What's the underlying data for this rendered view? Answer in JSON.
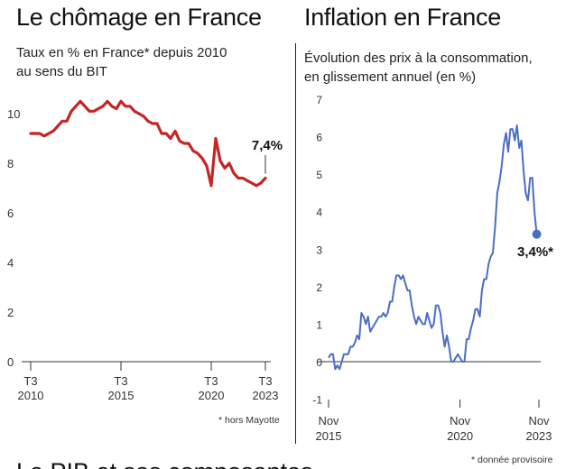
{
  "left": {
    "title": "Le chômage en France",
    "subtitle_line1": "Taux en % en France* depuis 2010",
    "subtitle_line2": "au sens du BIT",
    "footnote": "* hors Mayotte"
  },
  "right": {
    "title": "Inflation en France",
    "subtitle_line1": "Évolution des prix à la consommation,",
    "subtitle_line2": "en glissement annuel (en %)",
    "footnote": "* donnée provisoire"
  },
  "next_section_title": "Le PIB et ses composantes",
  "colors": {
    "unemployment_line": "#c42626",
    "inflation_line": "#4a6ec4",
    "axis": "#333333",
    "zero_line": "#333333"
  },
  "chart_data": [
    {
      "type": "line",
      "x_unit": "quarter index from 2010 T3",
      "ylim": [
        0,
        10
      ],
      "yticks": [
        0,
        2,
        4,
        6,
        8,
        10
      ],
      "xticks": [
        {
          "x": 0,
          "line1": "T3",
          "line2": "2010"
        },
        {
          "x": 20,
          "line1": "T3",
          "line2": "2015"
        },
        {
          "x": 40,
          "line1": "T3",
          "line2": "2020"
        },
        {
          "x": 52,
          "line1": "T3",
          "line2": "2023"
        }
      ],
      "annotation": "7,4%",
      "grid": false,
      "values": [
        9.2,
        9.2,
        9.2,
        9.1,
        9.2,
        9.3,
        9.5,
        9.7,
        9.7,
        10.1,
        10.3,
        10.5,
        10.3,
        10.1,
        10.1,
        10.2,
        10.3,
        10.5,
        10.3,
        10.2,
        10.5,
        10.3,
        10.3,
        10.1,
        10.0,
        9.9,
        9.7,
        9.6,
        9.6,
        9.2,
        9.2,
        9.0,
        9.3,
        8.9,
        8.8,
        8.8,
        8.5,
        8.4,
        8.2,
        7.9,
        7.1,
        9.0,
        8.1,
        7.8,
        8.0,
        7.6,
        7.4,
        7.4,
        7.3,
        7.2,
        7.1,
        7.2,
        7.4
      ]
    },
    {
      "type": "line",
      "x_unit": "month index from Nov 2015",
      "ylim": [
        -1,
        7
      ],
      "yticks": [
        -1,
        0,
        1,
        2,
        3,
        4,
        5,
        6,
        7
      ],
      "xticks": [
        {
          "x": 0,
          "line1": "Nov",
          "line2": "2015"
        },
        {
          "x": 60,
          "line1": "Nov",
          "line2": "2020"
        },
        {
          "x": 96,
          "line1": "Nov",
          "line2": "2023"
        }
      ],
      "annotation": "3,4%*",
      "grid": false,
      "values": [
        0.1,
        0.2,
        0.2,
        -0.2,
        -0.1,
        -0.2,
        0.0,
        0.2,
        0.2,
        0.2,
        0.4,
        0.4,
        0.5,
        0.7,
        0.6,
        1.3,
        1.2,
        1.0,
        1.2,
        0.8,
        0.9,
        1.0,
        1.1,
        1.2,
        1.2,
        1.3,
        1.2,
        1.3,
        1.6,
        1.6,
        2.0,
        2.3,
        2.3,
        2.2,
        2.3,
        2.1,
        1.9,
        1.9,
        1.5,
        1.2,
        1.0,
        1.2,
        1.1,
        1.0,
        1.0,
        1.3,
        1.1,
        0.9,
        1.0,
        1.5,
        1.5,
        1.3,
        0.8,
        0.4,
        0.7,
        0.4,
        0.0,
        0.0,
        0.1,
        0.2,
        0.1,
        0.0,
        0.0,
        0.6,
        0.6,
        0.9,
        1.1,
        1.4,
        1.4,
        1.2,
        1.9,
        2.2,
        2.2,
        2.6,
        2.8,
        2.9,
        3.6,
        4.5,
        4.8,
        5.2,
        5.8,
        6.1,
        5.6,
        6.2,
        6.2,
        5.9,
        6.3,
        5.7,
        5.9,
        5.1,
        4.5,
        4.3,
        4.9,
        4.9,
        4.0,
        3.4
      ]
    }
  ]
}
